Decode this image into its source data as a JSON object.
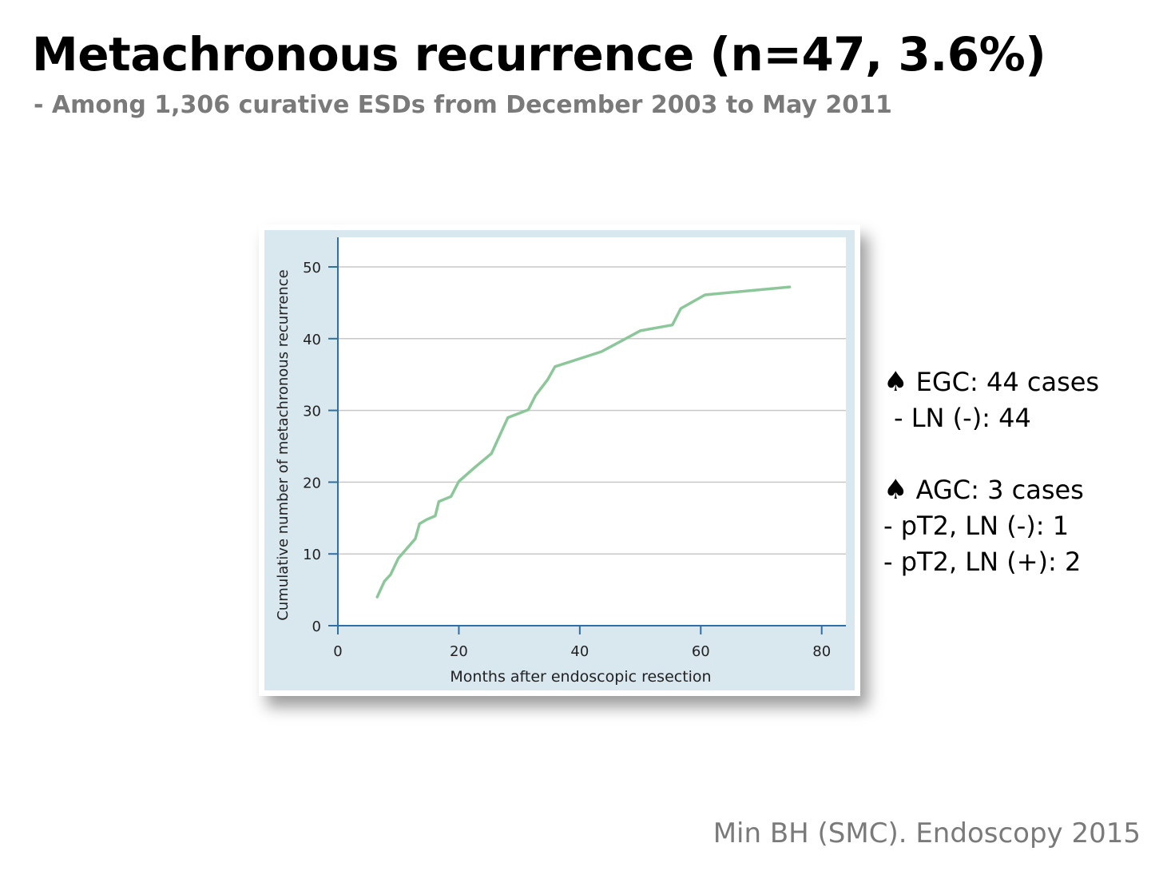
{
  "slide": {
    "title": "Metachronous recurrence (n=47, 3.6%)",
    "subtitle": "- Among 1,306 curative ESDs from December 2003 to May 2011",
    "citation": "Min BH (SMC). Endoscopy 2015"
  },
  "notes": {
    "egc": {
      "icon": "spade-icon",
      "heading": "EGC: 44 cases",
      "items": [
        "- LN (-): 44"
      ]
    },
    "agc": {
      "icon": "spade-icon",
      "heading": "AGC: 3 cases",
      "items": [
        "- pT2, LN (-): 1",
        "- pT2, LN (+): 2"
      ]
    }
  },
  "colors": {
    "panel_background": "#d9e7ef",
    "axis": "#2e6fa8",
    "series_line": "#8cc79a",
    "gridline": "#c8c8c8"
  },
  "chart_data": {
    "type": "line",
    "title": "",
    "xlabel": "Months after endoscopic resection",
    "ylabel": "Cumulative number of metachronous recurrence",
    "xlim": [
      0,
      84
    ],
    "ylim": [
      0,
      50
    ],
    "xticks": [
      0,
      20,
      40,
      60,
      80
    ],
    "yticks": [
      0,
      10,
      20,
      30,
      40,
      50
    ],
    "grid": "horizontal",
    "legend": "none",
    "series": [
      {
        "x": [
          6.5,
          7.7,
          8.7,
          10.0,
          12.8,
          13.5,
          14.7,
          16.1,
          16.7,
          18.7,
          20.0,
          22.7,
          25.4,
          28.1,
          31.5,
          32.7,
          34.7,
          35.9,
          43.6,
          50.0,
          55.3,
          56.7,
          60.7,
          74.7
        ],
        "y": [
          4.0,
          6.2,
          7.1,
          9.4,
          12.1,
          14.2,
          14.8,
          15.3,
          17.3,
          18.0,
          20.1,
          22.1,
          24.0,
          29.0,
          30.1,
          32.1,
          34.3,
          36.1,
          38.2,
          41.1,
          41.9,
          44.2,
          46.1,
          47.2
        ]
      }
    ]
  }
}
